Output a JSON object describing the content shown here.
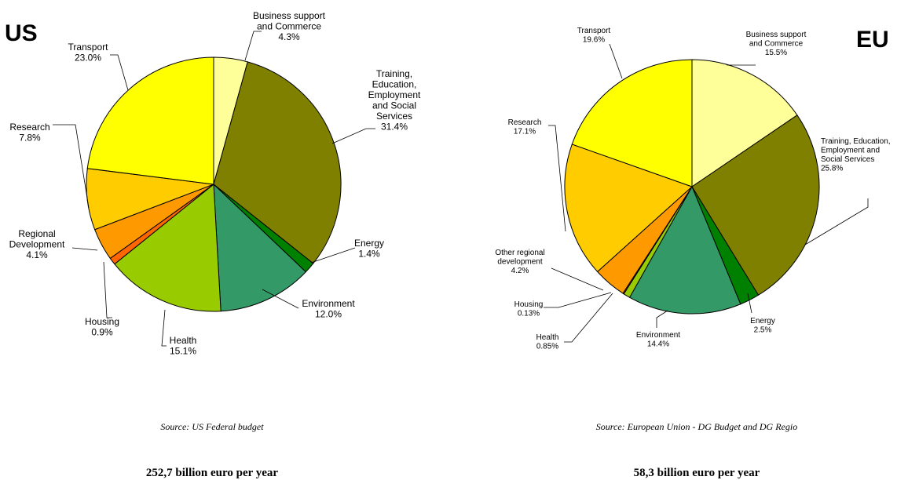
{
  "chart_data": [
    {
      "type": "pie",
      "title": "US",
      "source": "Source: US Federal budget",
      "total": "252,7 billion euro per year",
      "slices": [
        {
          "label": [
            "Business support",
            "and Commerce"
          ],
          "value_label": "4.3%",
          "value": 4.3,
          "color": "#FFFF99"
        },
        {
          "label": [
            "Training,",
            "Education,",
            "Employment",
            "and Social",
            "Services"
          ],
          "value_label": "31.4%",
          "value": 31.4,
          "color": "#808000"
        },
        {
          "label": [
            "Energy"
          ],
          "value_label": "1.4%",
          "value": 1.4,
          "color": "#008000"
        },
        {
          "label": [
            "Environment"
          ],
          "value_label": "12.0%",
          "value": 12.0,
          "color": "#339966"
        },
        {
          "label": [
            "Health"
          ],
          "value_label": "15.1%",
          "value": 15.1,
          "color": "#99CC00"
        },
        {
          "label": [
            "Housing"
          ],
          "value_label": "0.9%",
          "value": 0.9,
          "color": "#FF6600"
        },
        {
          "label": [
            "Regional",
            "Development"
          ],
          "value_label": "4.1%",
          "value": 4.1,
          "color": "#FF9900"
        },
        {
          "label": [
            "Research"
          ],
          "value_label": "7.8%",
          "value": 7.8,
          "color": "#FFCC00"
        },
        {
          "label": [
            "Transport"
          ],
          "value_label": "23.0%",
          "value": 23.0,
          "color": "#FFFF00"
        }
      ]
    },
    {
      "type": "pie",
      "title": "EU",
      "source": "Source: European Union - DG Budget and DG Regio",
      "total": "58,3 billion euro per year",
      "slices": [
        {
          "label": [
            "Business support",
            "and Commerce"
          ],
          "value_label": "15.5%",
          "value": 15.5,
          "color": "#FFFF99"
        },
        {
          "label": [
            "Training, Education,",
            "Employment and",
            "Social Services"
          ],
          "value_label": "25.8%",
          "value": 25.8,
          "color": "#808000"
        },
        {
          "label": [
            "Energy"
          ],
          "value_label": "2.5%",
          "value": 2.5,
          "color": "#008000"
        },
        {
          "label": [
            "Environment"
          ],
          "value_label": "14.4%",
          "value": 14.4,
          "color": "#339966"
        },
        {
          "label": [
            "Health"
          ],
          "value_label": "0.85%",
          "value": 0.85,
          "color": "#99CC00"
        },
        {
          "label": [
            "Housing"
          ],
          "value_label": "0.13%",
          "value": 0.13,
          "color": "#FF6600"
        },
        {
          "label": [
            "Other regional",
            "development"
          ],
          "value_label": "4.2%",
          "value": 4.2,
          "color": "#FF9900"
        },
        {
          "label": [
            "Research"
          ],
          "value_label": "17.1%",
          "value": 17.1,
          "color": "#FFCC00"
        },
        {
          "label": [
            "Transport"
          ],
          "value_label": "19.6%",
          "value": 19.6,
          "color": "#FFFF00"
        }
      ]
    }
  ]
}
